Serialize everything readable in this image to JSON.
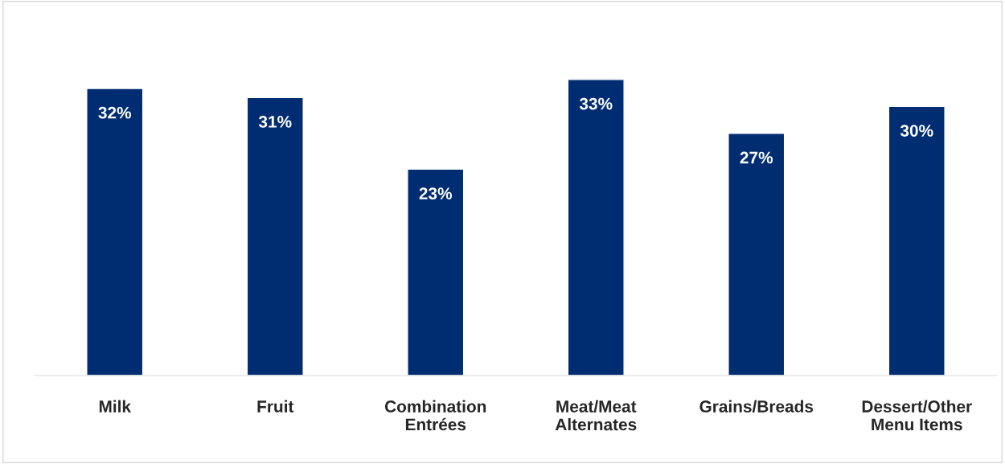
{
  "chart_data": {
    "type": "bar",
    "categories": [
      "Milk",
      "Fruit",
      "Combination Entrées",
      "Meat/Meat Alternates",
      "Grains/Breads",
      "Dessert/Other Menu Items"
    ],
    "values": [
      32,
      31,
      23,
      33,
      27,
      30
    ],
    "value_labels": [
      "32%",
      "31%",
      "23%",
      "33%",
      "27%",
      "30%"
    ],
    "color": "#002d72",
    "grid": false,
    "legend": false
  }
}
